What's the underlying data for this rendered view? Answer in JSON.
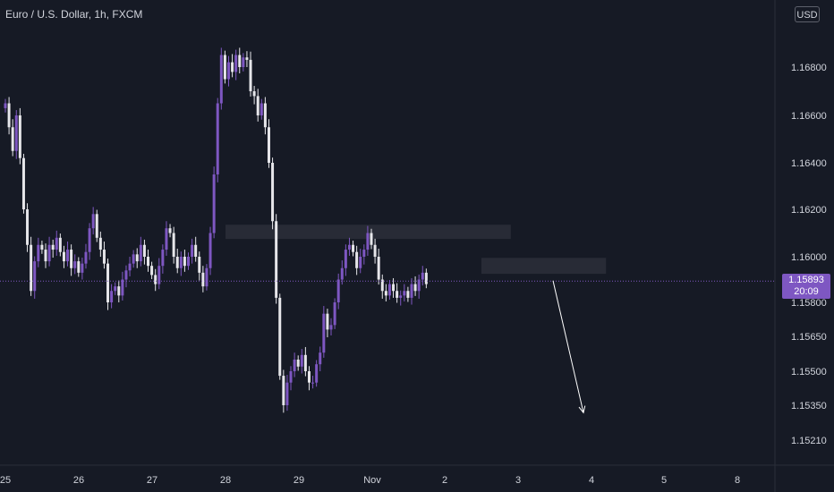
{
  "header": {
    "title": "Euro / U.S. Dollar, 1h, FXCM"
  },
  "axis": {
    "currency": "USD"
  },
  "last_price": {
    "value": "1.15893",
    "countdown": "20:09"
  },
  "colors": {
    "background": "#161a25",
    "bull": "#7e57c2",
    "bear": "#e6e6ea",
    "zone": "#2a2d39",
    "text": "#d1d4dc"
  },
  "chart_data": {
    "type": "candlestick",
    "x_ticks": [
      "25",
      "26",
      "27",
      "28",
      "29",
      "Nov",
      "2",
      "3",
      "4",
      "5",
      "8"
    ],
    "y_ticks": [
      "1.16800",
      "1.16600",
      "1.16400",
      "1.16200",
      "1.16000",
      "1.15800",
      "1.15650",
      "1.15500",
      "1.15350",
      "1.15210"
    ],
    "x_range": [
      "25",
      "8"
    ],
    "ylim": [
      1.1512,
      1.1692
    ],
    "current_price": 1.15893,
    "closes": [
      1.1665,
      1.1655,
      1.1645,
      1.166,
      1.1642,
      1.162,
      1.1605,
      1.1585,
      1.1598,
      1.1605,
      1.1603,
      1.1598,
      1.1605,
      1.1603,
      1.1608,
      1.1602,
      1.1598,
      1.1603,
      1.1595,
      1.1598,
      1.1593,
      1.1597,
      1.1602,
      1.1612,
      1.1618,
      1.1608,
      1.1603,
      1.1597,
      1.158,
      1.1585,
      1.1587,
      1.1583,
      1.159,
      1.1594,
      1.1597,
      1.1601,
      1.1598,
      1.1605,
      1.16,
      1.1596,
      1.1592,
      1.1588,
      1.1596,
      1.1603,
      1.1612,
      1.161,
      1.16,
      1.1595,
      1.16,
      1.1596,
      1.16,
      1.1605,
      1.16,
      1.1593,
      1.1587,
      1.1595,
      1.161,
      1.1635,
      1.1665,
      1.1685,
      1.1675,
      1.1682,
      1.1678,
      1.1685,
      1.168,
      1.1684,
      1.1683,
      1.167,
      1.1668,
      1.166,
      1.1665,
      1.1655,
      1.164,
      1.1615,
      1.1582,
      1.1548,
      1.1535,
      1.1545,
      1.155,
      1.1555,
      1.1552,
      1.1557,
      1.155,
      1.1545,
      1.1545,
      1.1553,
      1.1558,
      1.1575,
      1.1568,
      1.157,
      1.158,
      1.159,
      1.1595,
      1.1603,
      1.1605,
      1.1602,
      1.1595,
      1.16,
      1.1603,
      1.161,
      1.1605,
      1.16,
      1.159,
      1.1585,
      1.1583,
      1.1588,
      1.1585,
      1.1582,
      1.1583,
      1.1585,
      1.1582,
      1.1588,
      1.1585,
      1.159,
      1.1593,
      1.1588
    ],
    "annotations": [
      {
        "type": "zone",
        "x_range": [
          28,
          2.9
        ],
        "y_range": [
          1.16075,
          1.16135
        ]
      },
      {
        "type": "zone",
        "x_range": [
          2.5,
          4.2
        ],
        "y_range": [
          1.15925,
          1.15995
        ]
      },
      {
        "type": "arrow",
        "from": [
          3.5,
          1.15895
        ],
        "to": [
          4.0,
          1.1532
        ]
      }
    ]
  }
}
